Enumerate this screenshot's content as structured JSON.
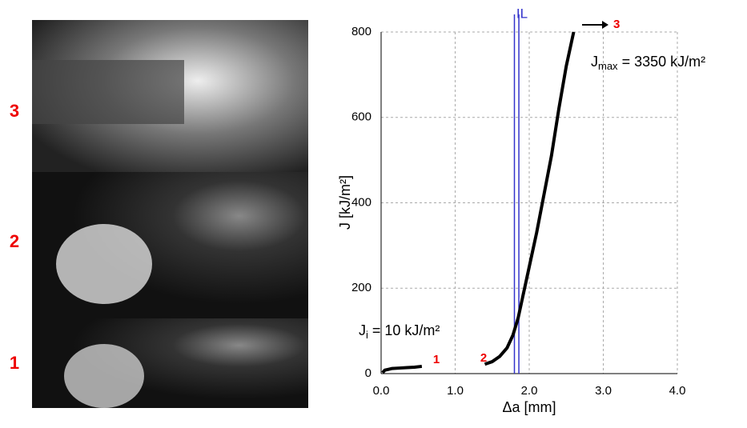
{
  "photo_labels": [
    "3",
    "2",
    "1"
  ],
  "chart_data": {
    "type": "line",
    "x_label": "Δa [mm]",
    "y_label": "J [kJ/m²]",
    "threshold_label": "IL",
    "thresholds": [
      1.8,
      1.86
    ],
    "point_labels": [
      "1",
      "2",
      "3"
    ],
    "j_max": {
      "symbol": "J",
      "subscript": "max",
      "text": "= 3350 kJ/m²"
    },
    "j_i": {
      "symbol": "J",
      "subscript": "i",
      "text": "= 10 kJ/m²"
    },
    "x": [
      0.02,
      0.05,
      0.1,
      0.15,
      0.25,
      0.35,
      0.45,
      0.55,
      1.0,
      1.4,
      1.5,
      1.6,
      1.7,
      1.78,
      1.85,
      1.9,
      1.95,
      2.0,
      2.05,
      2.1,
      2.2,
      2.3,
      2.4,
      2.5,
      2.6
    ],
    "series": [
      {
        "color": "#000000",
        "values": [
          2,
          8,
          10,
          12,
          13,
          14,
          15,
          17,
          null,
          22,
          28,
          40,
          60,
          90,
          130,
          170,
          210,
          250,
          290,
          330,
          420,
          510,
          620,
          720,
          800
        ]
      }
    ],
    "xlim": [
      0,
      4
    ],
    "ylim": [
      0,
      800
    ],
    "xticks": [
      {
        "value": 0,
        "label": "0.0"
      },
      {
        "value": 1,
        "label": "1.0"
      },
      {
        "value": 2,
        "label": "2.0"
      },
      {
        "value": 3,
        "label": "3.0"
      },
      {
        "value": 4,
        "label": "4.0"
      }
    ],
    "yticks": [
      0,
      200,
      400,
      600,
      800
    ],
    "grid": true
  }
}
